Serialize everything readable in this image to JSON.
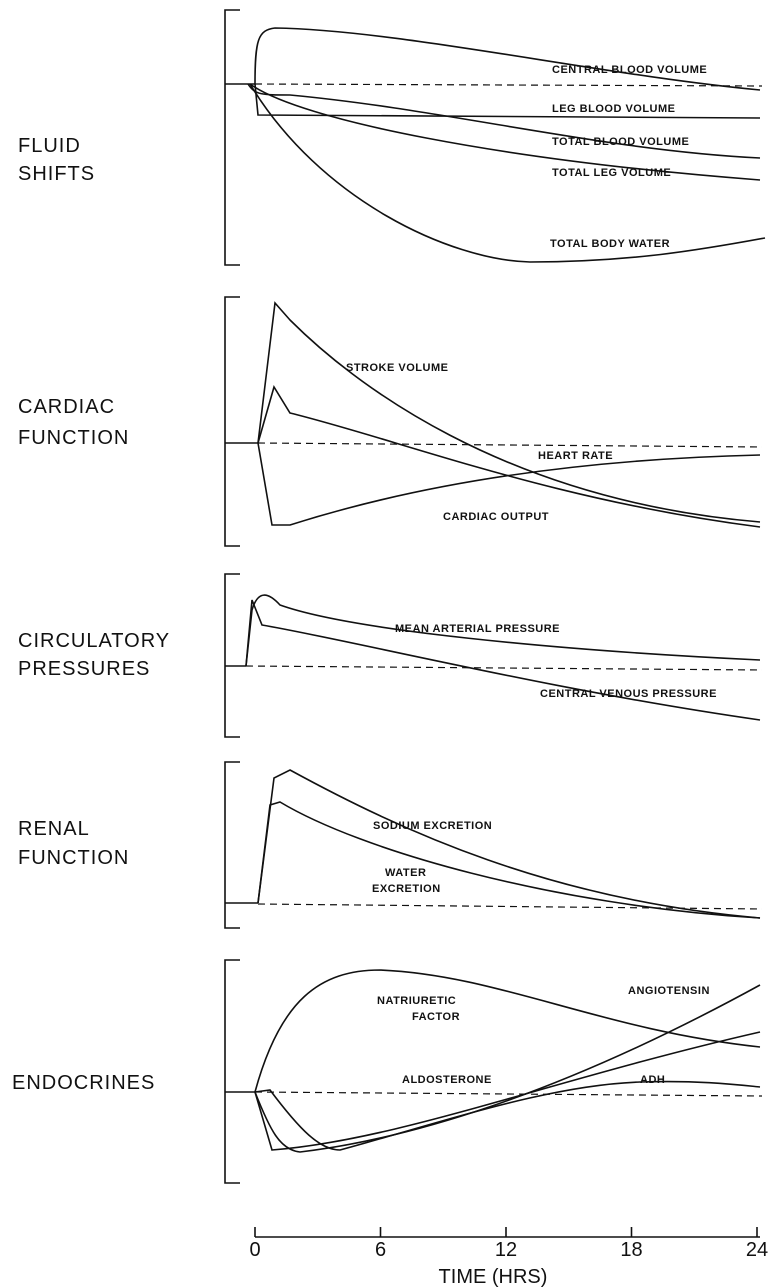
{
  "panels": [
    {
      "label": [
        "FLUID",
        "SHIFTS"
      ],
      "curves": [
        "CENTRAL BLOOD VOLUME",
        "LEG BLOOD VOLUME",
        "TOTAL BLOOD VOLUME",
        "TOTAL LEG VOLUME",
        "TOTAL BODY WATER"
      ]
    },
    {
      "label": [
        "CARDIAC",
        "FUNCTION"
      ],
      "curves": [
        "STROKE VOLUME",
        "HEART RATE",
        "CARDIAC OUTPUT"
      ]
    },
    {
      "label": [
        "CIRCULATORY",
        "PRESSURES"
      ],
      "curves": [
        "MEAN ARTERIAL PRESSURE",
        "CENTRAL VENOUS PRESSURE"
      ]
    },
    {
      "label": [
        "RENAL",
        "FUNCTION"
      ],
      "curves": [
        "SODIUM EXCRETION",
        "WATER",
        "EXCRETION"
      ]
    },
    {
      "label": [
        "ENDOCRINES"
      ],
      "curves": [
        "NATRIURETIC",
        "FACTOR",
        "ANGIOTENSIN",
        "ALDOSTERONE",
        "ADH"
      ]
    }
  ],
  "x_axis": {
    "label": "TIME (HRS)",
    "ticks": [
      0,
      6,
      12,
      18,
      24
    ],
    "range": [
      0,
      24
    ]
  }
}
